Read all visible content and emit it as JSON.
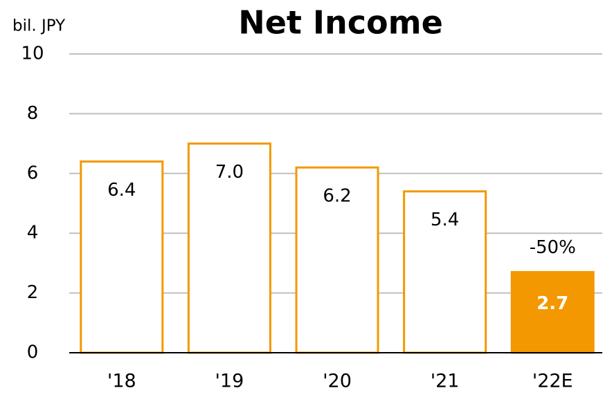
{
  "chart_data": {
    "type": "bar",
    "title": "Net Income",
    "y_label": "bil. JPY",
    "categories": [
      "'18",
      "'19",
      "'20",
      "'21",
      "'22E"
    ],
    "values": [
      6.4,
      7.0,
      6.2,
      5.4,
      2.7
    ],
    "value_labels": [
      "6.4",
      "7.0",
      "6.2",
      "5.4",
      "2.7"
    ],
    "color": "#f39800",
    "fills": [
      "#ffffff",
      "#ffffff",
      "#ffffff",
      "#ffffff",
      "#f39800"
    ],
    "annotation": "-50%",
    "ylim": [
      0,
      10
    ],
    "yticks": [
      0,
      2,
      4,
      6,
      8,
      10
    ],
    "grid": true
  }
}
